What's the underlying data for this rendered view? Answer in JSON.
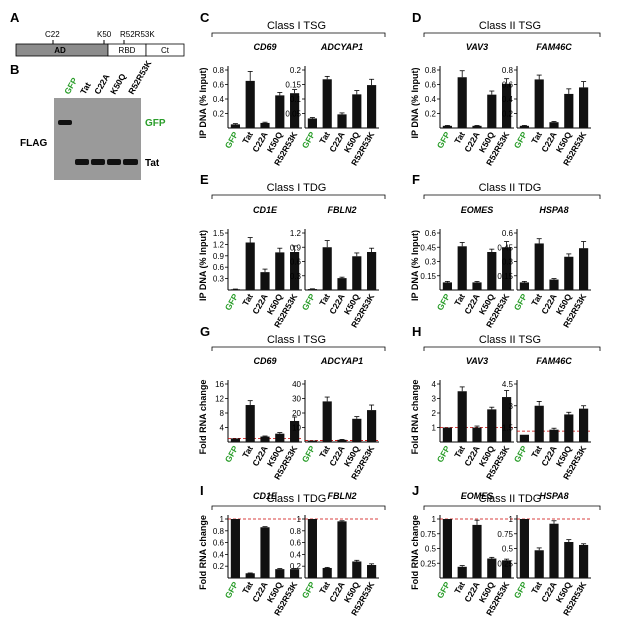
{
  "panels": {
    "A": {
      "label": "A",
      "ticks": [
        "C22",
        "K50",
        "R52R53K"
      ],
      "domains": [
        "AD",
        "RBD",
        "Ct"
      ]
    },
    "B": {
      "label": "B",
      "lanes": [
        "GFP",
        "Tat",
        "C22A",
        "K50Q",
        "R52R53K"
      ],
      "side_left": "FLAG",
      "band_gfp": "GFP",
      "band_tat": "Tat"
    }
  },
  "bar_labels": [
    "GFP",
    "Tat",
    "C22A",
    "K50Q",
    "R52R53K"
  ],
  "colors": {
    "bar": "#111111",
    "gfp_label": "#2a9d2a",
    "dashed_line": "#cc0000",
    "gel_bg": "#9a9a9a"
  },
  "chart_data": [
    {
      "id": "C-CD69",
      "panel": "C",
      "group_title": "Class I TSG",
      "ylabel": "IP DNA (% Input)",
      "gene": "CD69",
      "type": "bar",
      "categories": [
        "GFP",
        "Tat",
        "C22A",
        "K50Q",
        "R52R53K"
      ],
      "values": [
        0.05,
        0.65,
        0.07,
        0.45,
        0.48
      ],
      "errors": [
        0.01,
        0.13,
        0.01,
        0.04,
        0.05
      ],
      "ylim": [
        0,
        0.8
      ],
      "yticks": [
        "0.2",
        "0.4",
        "0.6",
        "0.8"
      ]
    },
    {
      "id": "C-ADCYAP1",
      "panel": "C",
      "gene": "ADCYAP1",
      "type": "bar",
      "categories": [
        "GFP",
        "Tat",
        "C22A",
        "K50Q",
        "R52R53K"
      ],
      "values": [
        0.033,
        0.168,
        0.047,
        0.116,
        0.148
      ],
      "errors": [
        0.003,
        0.01,
        0.005,
        0.013,
        0.02
      ],
      "ylim": [
        0,
        0.2
      ],
      "yticks": [
        "0.05",
        "0.1",
        "0.15",
        "0.2"
      ]
    },
    {
      "id": "D-VAV3",
      "panel": "D",
      "group_title": "Class II TSG",
      "ylabel": "IP DNA (% Input)",
      "gene": "VAV3",
      "type": "bar",
      "categories": [
        "GFP",
        "Tat",
        "C22A",
        "K50Q",
        "R52R53K"
      ],
      "values": [
        0.03,
        0.7,
        0.03,
        0.46,
        0.61
      ],
      "errors": [
        0.005,
        0.09,
        0.005,
        0.05,
        0.07
      ],
      "ylim": [
        0,
        0.8
      ],
      "yticks": [
        "0.2",
        "0.4",
        "0.6",
        "0.8"
      ]
    },
    {
      "id": "D-FAM46C",
      "panel": "D",
      "gene": "FAM46C",
      "type": "bar",
      "categories": [
        "GFP",
        "Tat",
        "C22A",
        "K50Q",
        "R52R53K"
      ],
      "values": [
        0.03,
        0.67,
        0.08,
        0.47,
        0.56
      ],
      "errors": [
        0.005,
        0.06,
        0.01,
        0.07,
        0.08
      ],
      "ylim": [
        0,
        0.8
      ],
      "yticks": [
        "0.2",
        "0.4",
        "0.6",
        "0.8"
      ]
    },
    {
      "id": "E-CD1E",
      "panel": "E",
      "group_title": "Class I TDG",
      "ylabel": "IP DNA (% Input)",
      "gene": "CD1E",
      "type": "bar",
      "categories": [
        "GFP",
        "Tat",
        "C22A",
        "K50Q",
        "R52R53K"
      ],
      "values": [
        0.02,
        1.25,
        0.47,
        0.99,
        1.0
      ],
      "errors": [
        0.005,
        0.13,
        0.08,
        0.11,
        0.16
      ],
      "ylim": [
        0,
        1.5
      ],
      "yticks": [
        "0.3",
        "0.6",
        "0.9",
        "1.2",
        "1.5"
      ]
    },
    {
      "id": "E-FBLN2",
      "panel": "E",
      "gene": "FBLN2",
      "type": "bar",
      "categories": [
        "GFP",
        "Tat",
        "C22A",
        "K50Q",
        "R52R53K"
      ],
      "values": [
        0.02,
        0.9,
        0.25,
        0.71,
        0.8
      ],
      "errors": [
        0.005,
        0.14,
        0.02,
        0.07,
        0.08
      ],
      "ylim": [
        0,
        1.2
      ],
      "yticks": [
        "0.3",
        "0.6",
        "0.9",
        "1.2"
      ]
    },
    {
      "id": "F-EOMES",
      "panel": "F",
      "group_title": "Class II TDG",
      "ylabel": "IP DNA (% Input)",
      "gene": "EOMES",
      "type": "bar",
      "categories": [
        "GFP",
        "Tat",
        "C22A",
        "K50Q",
        "R52R53K"
      ],
      "values": [
        0.08,
        0.46,
        0.08,
        0.4,
        0.45
      ],
      "errors": [
        0.01,
        0.04,
        0.01,
        0.03,
        0.06
      ],
      "ylim": [
        0,
        0.6
      ],
      "yticks": [
        "0.15",
        "0.3",
        "0.45",
        "0.6"
      ]
    },
    {
      "id": "F-HSPA8",
      "panel": "F",
      "gene": "HSPA8",
      "type": "bar",
      "categories": [
        "GFP",
        "Tat",
        "C22A",
        "K50Q",
        "R52R53K"
      ],
      "values": [
        0.08,
        0.49,
        0.11,
        0.35,
        0.44
      ],
      "errors": [
        0.01,
        0.05,
        0.01,
        0.03,
        0.07
      ],
      "ylim": [
        0,
        0.6
      ],
      "yticks": [
        "0.15",
        "0.3",
        "0.45",
        "0.6"
      ]
    },
    {
      "id": "G-CD69",
      "panel": "G",
      "group_title": "Class I TSG",
      "ylabel": "Fold RNA change",
      "gene": "CD69",
      "type": "bar",
      "categories": [
        "GFP",
        "Tat",
        "C22A",
        "K50Q",
        "R52R53K"
      ],
      "values": [
        1,
        10.2,
        1.5,
        2.3,
        5.8
      ],
      "errors": [
        0,
        1.2,
        0.15,
        0.3,
        1.1
      ],
      "ylim": [
        0,
        16
      ],
      "yticks": [
        "4",
        "8",
        "12",
        "16"
      ],
      "dashed": 1
    },
    {
      "id": "G-ADCYAP1",
      "panel": "G",
      "gene": "ADCYAP1",
      "type": "bar",
      "categories": [
        "GFP",
        "Tat",
        "C22A",
        "K50Q",
        "R52R53K"
      ],
      "values": [
        1,
        28,
        1.5,
        16,
        22
      ],
      "errors": [
        0,
        3,
        0.3,
        1.5,
        3.5
      ],
      "ylim": [
        0,
        40
      ],
      "yticks": [
        "10",
        "20",
        "30",
        "40"
      ],
      "dashed": 1
    },
    {
      "id": "H-VAV3",
      "panel": "H",
      "group_title": "Class II TSG",
      "ylabel": "Fold RNA change",
      "gene": "VAV3",
      "type": "bar",
      "categories": [
        "GFP",
        "Tat",
        "C22A",
        "K50Q",
        "R52R53K"
      ],
      "values": [
        1,
        3.5,
        1.0,
        2.25,
        3.1
      ],
      "errors": [
        0,
        0.3,
        0.1,
        0.15,
        0.45
      ],
      "ylim": [
        0,
        4
      ],
      "yticks": [
        "1",
        "2",
        "3",
        "4"
      ],
      "dashed": 1
    },
    {
      "id": "H-FAM46C",
      "panel": "H",
      "gene": "FAM46C",
      "type": "bar",
      "categories": [
        "GFP",
        "Tat",
        "C22A",
        "K50Q",
        "R52R53K"
      ],
      "values": [
        1,
        3.0,
        1.35,
        2.4,
        2.8
      ],
      "errors": [
        0,
        0.3,
        0.1,
        0.15,
        0.2
      ],
      "ylim": [
        0.5,
        4.5
      ],
      "yticks": [
        "1.5",
        "3",
        "4.5"
      ],
      "dashed": 1.25
    },
    {
      "id": "I-CD1E",
      "panel": "I",
      "group_title": "Class I TDG",
      "ylabel": "Fold RNA change",
      "gene": "CD1E",
      "type": "bar",
      "categories": [
        "GFP",
        "Tat",
        "C22A",
        "K50Q",
        "R52R53K"
      ],
      "values": [
        1,
        0.08,
        0.86,
        0.15,
        0.15
      ],
      "errors": [
        0,
        0.005,
        0.01,
        0.01,
        0.01
      ],
      "ylim": [
        0,
        1
      ],
      "yticks": [
        "0.2",
        "0.4",
        "0.6",
        "0.8",
        "1"
      ],
      "dashed": 1
    },
    {
      "id": "I-FBLN2",
      "panel": "I",
      "gene": "FBLN2",
      "type": "bar",
      "categories": [
        "GFP",
        "Tat",
        "C22A",
        "K50Q",
        "R52R53K"
      ],
      "values": [
        1,
        0.17,
        0.96,
        0.28,
        0.22
      ],
      "errors": [
        0,
        0.01,
        0.01,
        0.02,
        0.02
      ],
      "ylim": [
        0,
        1
      ],
      "yticks": [
        "0.2",
        "0.4",
        "0.6",
        "0.8",
        "1"
      ],
      "dashed": 1
    },
    {
      "id": "J-EOMES",
      "panel": "J",
      "group_title": "Class II TDG",
      "ylabel": "Fold RNA change",
      "gene": "EOMES",
      "type": "bar",
      "categories": [
        "GFP",
        "Tat",
        "C22A",
        "K50Q",
        "R52R53K"
      ],
      "values": [
        1,
        0.19,
        0.9,
        0.33,
        0.3
      ],
      "errors": [
        0,
        0.02,
        0.08,
        0.02,
        0.02
      ],
      "ylim": [
        0,
        1
      ],
      "yticks": [
        "0.25",
        "0.5",
        "0.75",
        "1"
      ],
      "dashed": 1
    },
    {
      "id": "J-HSPA8",
      "panel": "J",
      "gene": "HSPA8",
      "type": "bar",
      "categories": [
        "GFP",
        "Tat",
        "C22A",
        "K50Q",
        "R52R53K"
      ],
      "values": [
        1,
        0.47,
        0.92,
        0.61,
        0.56
      ],
      "errors": [
        0,
        0.04,
        0.05,
        0.04,
        0.02
      ],
      "ylim": [
        0,
        1
      ],
      "yticks": [
        "0.25",
        "0.5",
        "0.75",
        "1"
      ],
      "dashed": 1
    }
  ]
}
